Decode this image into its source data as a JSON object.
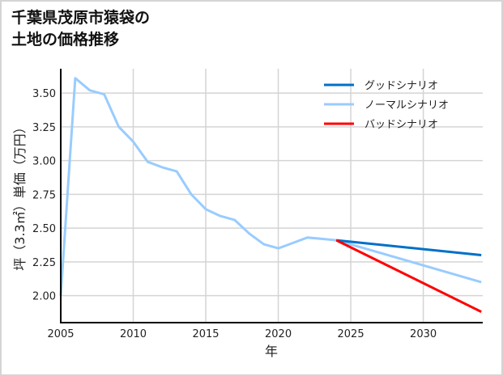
{
  "title": "千葉県茂原市猿袋の\n土地の価格推移",
  "chart_data": {
    "type": "line",
    "title": "千葉県茂原市猿袋の土地の価格推移",
    "xlabel": "年",
    "ylabel": "坪（3.3㎡）単価（万円）",
    "xlim": [
      2005,
      2034.1
    ],
    "ylim": [
      1.8,
      3.68
    ],
    "xticks": [
      2005,
      2010,
      2015,
      2020,
      2025,
      2030
    ],
    "yticks": [
      2.0,
      2.25,
      2.5,
      2.75,
      3.0,
      3.25,
      3.5
    ],
    "ytick_labels": [
      "2.00",
      "2.25",
      "2.50",
      "2.75",
      "3.00",
      "3.25",
      "3.50"
    ],
    "grid": true,
    "legend_position": "upper right",
    "series": [
      {
        "name": "グッドシナリオ",
        "color": "#0070c8",
        "x": [
          2024,
          2034
        ],
        "y": [
          2.41,
          2.3
        ]
      },
      {
        "name": "ノーマルシナリオ",
        "color": "#99ccff",
        "x": [
          2005,
          2006,
          2007,
          2008,
          2009,
          2010,
          2011,
          2012,
          2013,
          2014,
          2015,
          2016,
          2017,
          2018,
          2019,
          2020,
          2021,
          2022,
          2023,
          2024,
          2034
        ],
        "y": [
          2.0,
          3.61,
          3.52,
          3.49,
          3.25,
          3.14,
          2.99,
          2.95,
          2.92,
          2.75,
          2.64,
          2.59,
          2.56,
          2.46,
          2.38,
          2.35,
          2.39,
          2.43,
          2.42,
          2.41,
          2.1
        ]
      },
      {
        "name": "バッドシナリオ",
        "color": "#ff0000",
        "x": [
          2024,
          2034
        ],
        "y": [
          2.41,
          1.88
        ]
      }
    ]
  }
}
